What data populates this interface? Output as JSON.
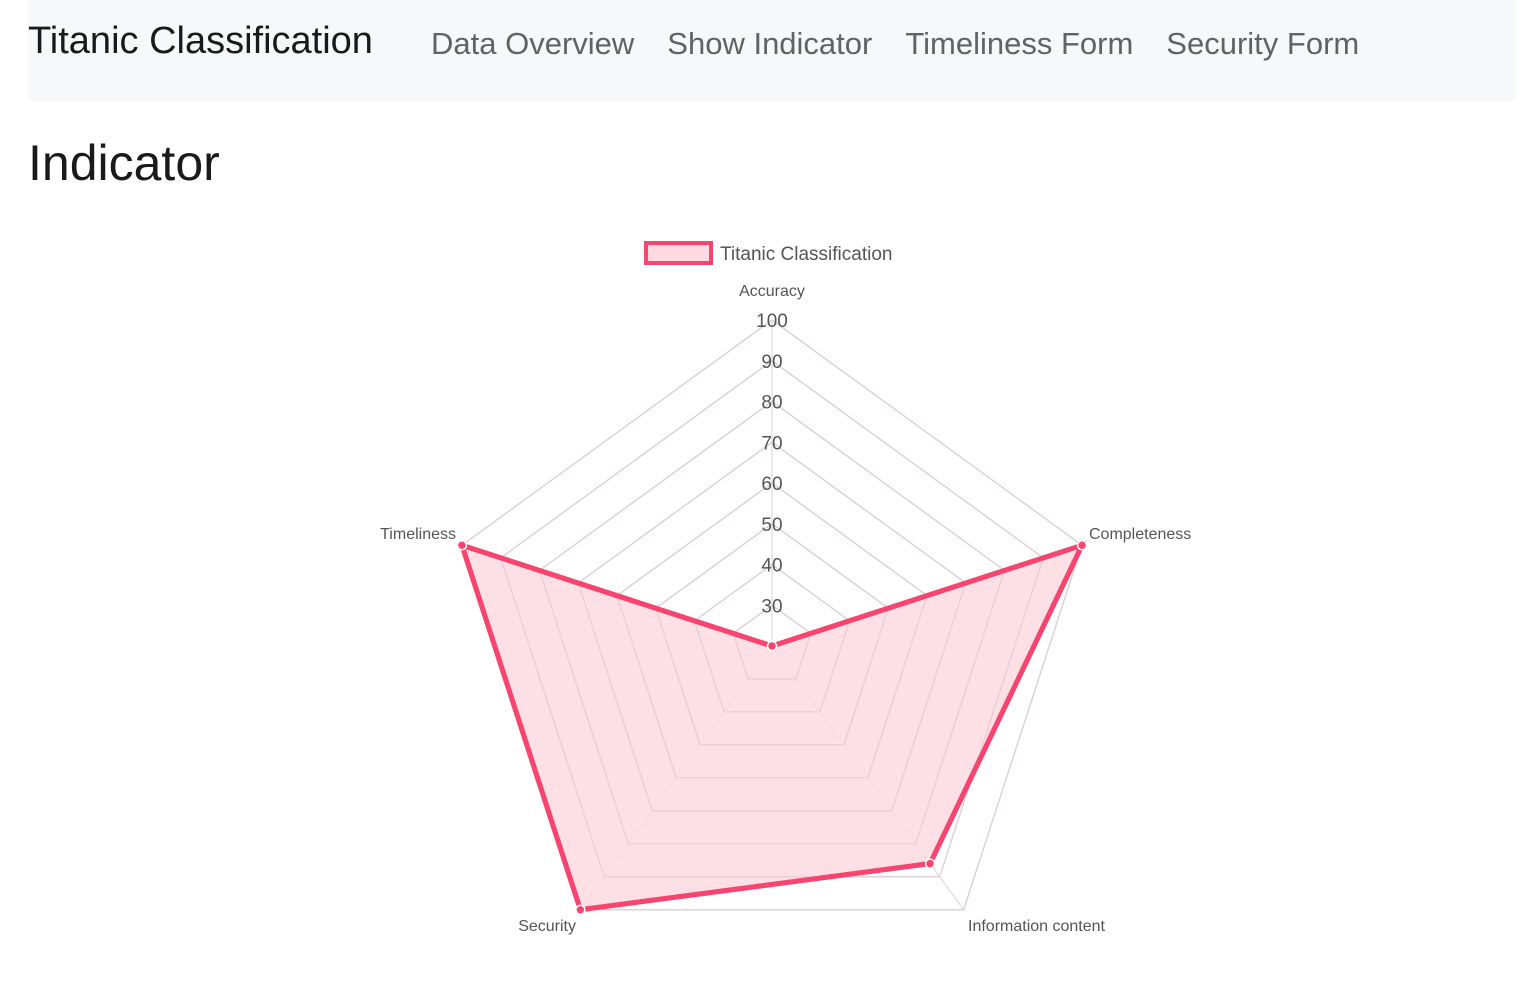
{
  "navbar": {
    "brand": "Titanic Classification",
    "links": [
      "Data Overview",
      "Show Indicator",
      "Timeliness Form",
      "Security Form"
    ]
  },
  "page": {
    "title": "Indicator"
  },
  "chart_data": {
    "type": "radar",
    "title": "",
    "labels": [
      "Accuracy",
      "Completeness",
      "Information content",
      "Security",
      "Timeliness"
    ],
    "series": [
      {
        "name": "Titanic Classification",
        "values": [
          20,
          100,
          86,
          100,
          100
        ],
        "border_color": "#f7456f",
        "fill_color": "#fdd9e2"
      }
    ],
    "r_min": 20,
    "r_max": 100,
    "ticks": [
      30,
      40,
      50,
      60,
      70,
      80,
      90,
      100
    ],
    "grid": true,
    "grid_color": "#e2e2e2",
    "legend_position": "top"
  }
}
